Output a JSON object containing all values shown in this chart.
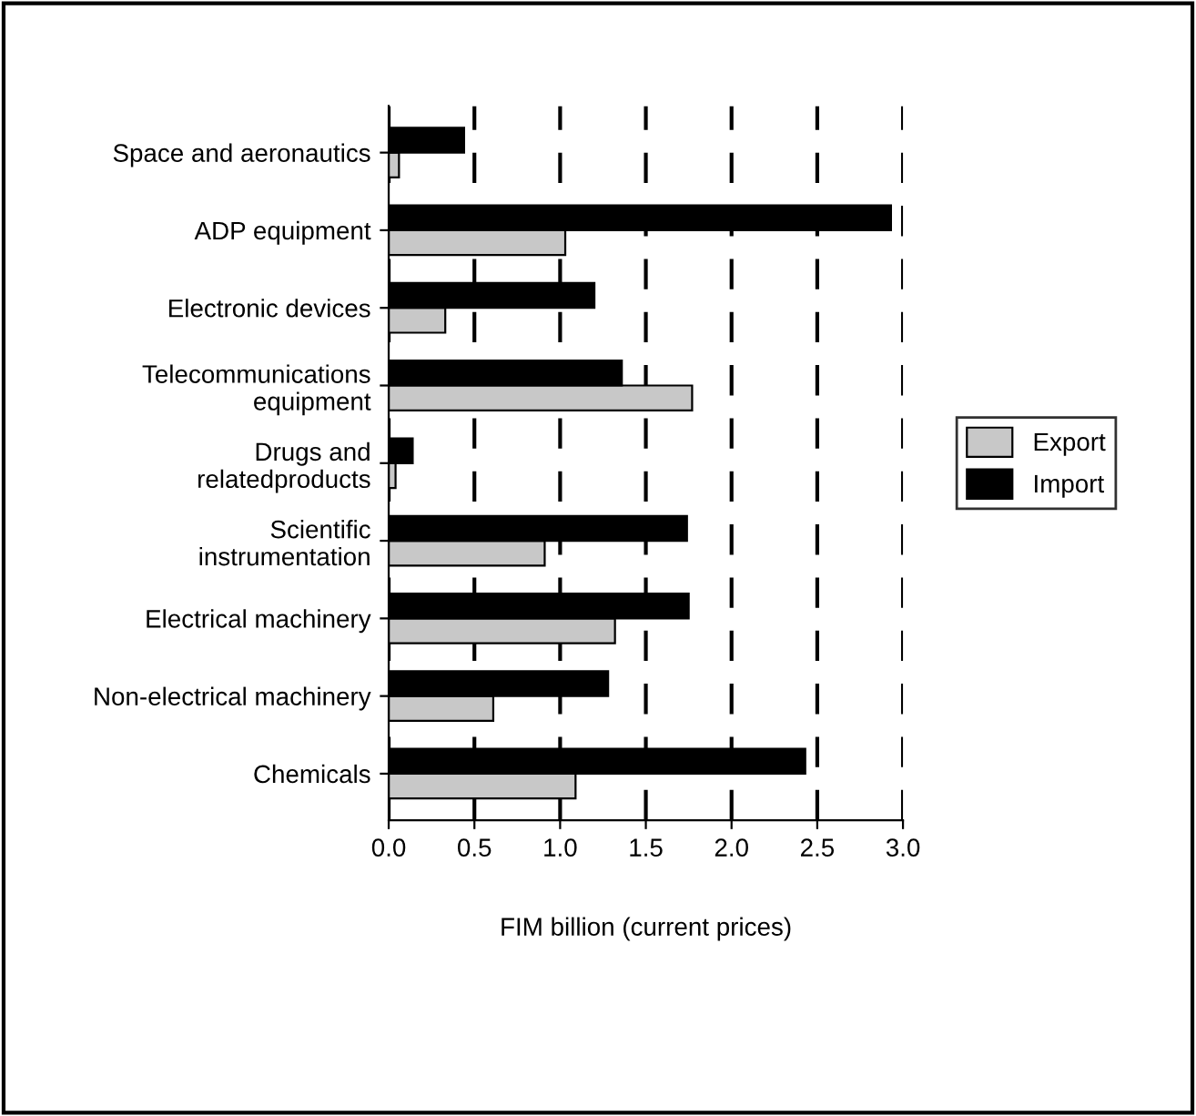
{
  "chart_data": {
    "type": "bar",
    "orientation": "horizontal",
    "xlabel": "FIM billion (current prices)",
    "categories": [
      "Space and aeronautics",
      "ADP equipment",
      "Electronic devices",
      "Telecommunications\nequipment",
      "Drugs and\nrelatedproducts",
      "Scientific\ninstrumentation",
      "Electrical machinery",
      "Non-electrical machinery",
      "Chemicals"
    ],
    "series": [
      {
        "name": "Export",
        "color": "#c8c8c8",
        "values": [
          0.06,
          1.03,
          0.33,
          1.77,
          0.04,
          0.91,
          1.32,
          0.61,
          1.09
        ]
      },
      {
        "name": "Import",
        "color": "#000000",
        "values": [
          0.44,
          2.93,
          1.2,
          1.36,
          0.14,
          1.74,
          1.75,
          1.28,
          2.43
        ]
      }
    ],
    "xlim": [
      0,
      3.0
    ],
    "xticks": [
      {
        "value": 0,
        "label": "0.0"
      },
      0.5,
      {
        "value": 1,
        "label": "1.0"
      },
      1.5,
      {
        "value": 2,
        "label": "2.0"
      },
      2.5,
      {
        "value": 3,
        "label": "3.0"
      }
    ],
    "grid": "x",
    "legend": "right"
  }
}
